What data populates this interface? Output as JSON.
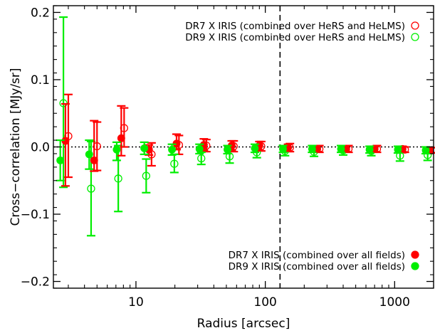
{
  "chart_data": {
    "type": "scatter",
    "xlabel": "Radius [arcsec]",
    "ylabel": "Cross−correlation [MJy/sr]",
    "xscale": "log",
    "xlim": [
      2.3,
      2000
    ],
    "ylim": [
      -0.21,
      0.21
    ],
    "x_ticks": [
      {
        "value": 10,
        "label": "10"
      },
      {
        "value": 100,
        "label": "100"
      },
      {
        "value": 1000,
        "label": "1000"
      }
    ],
    "y_ticks": [
      {
        "value": -0.2,
        "label": "−0.2"
      },
      {
        "value": -0.1,
        "label": "−0.1"
      },
      {
        "value": 0.0,
        "label": "0.0"
      },
      {
        "value": 0.1,
        "label": "0.1"
      },
      {
        "value": 0.2,
        "label": "0.2"
      }
    ],
    "reference_lines": {
      "horizontal_dotted_y": 0.0,
      "vertical_dashed_x": 130
    },
    "series": [
      {
        "name": "DR7 X IRIS (combined over HeRS and HeLMS)",
        "color": "#ff0000",
        "marker": "open-circle",
        "legend": "top-right",
        "points": [
          {
            "x": 3.0,
            "y": 0.016,
            "lo": -0.045,
            "hi": 0.078
          },
          {
            "x": 5.0,
            "y": 0.001,
            "lo": -0.035,
            "hi": 0.037
          },
          {
            "x": 8.1,
            "y": 0.028,
            "lo": 0.0,
            "hi": 0.058
          },
          {
            "x": 13.2,
            "y": -0.011,
            "lo": -0.028,
            "hi": 0.006
          },
          {
            "x": 21.5,
            "y": 0.003,
            "lo": -0.011,
            "hi": 0.017
          },
          {
            "x": 35.0,
            "y": 0.002,
            "lo": -0.007,
            "hi": 0.011
          },
          {
            "x": 57.0,
            "y": 0.001,
            "lo": -0.007,
            "hi": 0.009
          },
          {
            "x": 93.0,
            "y": 0.001,
            "lo": -0.006,
            "hi": 0.008
          },
          {
            "x": 155.0,
            "y": -0.001,
            "lo": -0.007,
            "hi": 0.005
          },
          {
            "x": 262.0,
            "y": -0.003,
            "lo": -0.008,
            "hi": 0.002
          },
          {
            "x": 440.0,
            "y": -0.003,
            "lo": -0.008,
            "hi": 0.002
          },
          {
            "x": 730.0,
            "y": -0.003,
            "lo": -0.008,
            "hi": 0.002
          },
          {
            "x": 1200.0,
            "y": -0.004,
            "lo": -0.008,
            "hi": 0.0
          },
          {
            "x": 1950.0,
            "y": -0.005,
            "lo": -0.009,
            "hi": -0.001
          }
        ]
      },
      {
        "name": "DR9 X IRIS (combined over HeRS and HeLMS)",
        "color": "#00ee00",
        "marker": "open-circle",
        "legend": "top-right",
        "points": [
          {
            "x": 2.75,
            "y": 0.065,
            "lo": -0.06,
            "hi": 0.193
          },
          {
            "x": 4.5,
            "y": -0.062,
            "lo": -0.132,
            "hi": 0.008
          },
          {
            "x": 7.3,
            "y": -0.047,
            "lo": -0.096,
            "hi": 0.002
          },
          {
            "x": 12.0,
            "y": -0.043,
            "lo": -0.068,
            "hi": -0.018
          },
          {
            "x": 19.8,
            "y": -0.025,
            "lo": -0.038,
            "hi": -0.011
          },
          {
            "x": 32.0,
            "y": -0.017,
            "lo": -0.026,
            "hi": -0.008
          },
          {
            "x": 53.0,
            "y": -0.014,
            "lo": -0.024,
            "hi": -0.005
          },
          {
            "x": 86.0,
            "y": -0.008,
            "lo": -0.016,
            "hi": 0.0
          },
          {
            "x": 142.0,
            "y": -0.006,
            "lo": -0.013,
            "hi": 0.001
          },
          {
            "x": 238.0,
            "y": -0.007,
            "lo": -0.014,
            "hi": 0.0
          },
          {
            "x": 400.0,
            "y": -0.005,
            "lo": -0.012,
            "hi": 0.002
          },
          {
            "x": 660.0,
            "y": -0.006,
            "lo": -0.013,
            "hi": 0.001
          },
          {
            "x": 1100.0,
            "y": -0.013,
            "lo": -0.021,
            "hi": -0.005
          },
          {
            "x": 1800.0,
            "y": -0.012,
            "lo": -0.02,
            "hi": -0.004
          }
        ]
      },
      {
        "name": "DR7 X IRIS (combined over all fields)",
        "color": "#ff0000",
        "marker": "filled-circle",
        "legend": "bottom-right",
        "points": [
          {
            "x": 2.85,
            "y": 0.009,
            "lo": -0.058,
            "hi": 0.064
          },
          {
            "x": 4.75,
            "y": -0.02,
            "lo": -0.036,
            "hi": 0.039
          },
          {
            "x": 7.7,
            "y": 0.013,
            "lo": -0.013,
            "hi": 0.061
          },
          {
            "x": 12.6,
            "y": -0.004,
            "lo": -0.012,
            "hi": 0.003
          },
          {
            "x": 20.6,
            "y": 0.005,
            "lo": -0.004,
            "hi": 0.019
          },
          {
            "x": 33.5,
            "y": 0.003,
            "lo": -0.005,
            "hi": 0.012
          },
          {
            "x": 55.0,
            "y": 0.002,
            "lo": -0.005,
            "hi": 0.009
          },
          {
            "x": 90.0,
            "y": 0.002,
            "lo": -0.005,
            "hi": 0.008
          },
          {
            "x": 150.0,
            "y": -0.001,
            "lo": -0.006,
            "hi": 0.004
          },
          {
            "x": 252.0,
            "y": -0.003,
            "lo": -0.007,
            "hi": 0.002
          },
          {
            "x": 422.0,
            "y": -0.003,
            "lo": -0.007,
            "hi": 0.002
          },
          {
            "x": 700.0,
            "y": -0.003,
            "lo": -0.007,
            "hi": 0.001
          },
          {
            "x": 1150.0,
            "y": -0.003,
            "lo": -0.007,
            "hi": 0.001
          },
          {
            "x": 1880.0,
            "y": -0.005,
            "lo": -0.008,
            "hi": -0.001
          }
        ]
      },
      {
        "name": "DR9 X IRIS (combined over all fields)",
        "color": "#00ee00",
        "marker": "filled-circle",
        "legend": "bottom-right",
        "points": [
          {
            "x": 2.6,
            "y": -0.02,
            "lo": -0.05,
            "hi": 0.01
          },
          {
            "x": 4.35,
            "y": -0.011,
            "lo": -0.033,
            "hi": 0.01
          },
          {
            "x": 7.1,
            "y": -0.004,
            "lo": -0.02,
            "hi": 0.007
          },
          {
            "x": 11.6,
            "y": -0.002,
            "lo": -0.011,
            "hi": 0.007
          },
          {
            "x": 19.0,
            "y": -0.004,
            "lo": -0.012,
            "hi": 0.004
          },
          {
            "x": 31.0,
            "y": -0.003,
            "lo": -0.01,
            "hi": 0.004
          },
          {
            "x": 51.0,
            "y": -0.004,
            "lo": -0.01,
            "hi": 0.002
          },
          {
            "x": 83.0,
            "y": -0.002,
            "lo": -0.008,
            "hi": 0.004
          },
          {
            "x": 137.0,
            "y": -0.003,
            "lo": -0.008,
            "hi": 0.002
          },
          {
            "x": 230.0,
            "y": -0.003,
            "lo": -0.008,
            "hi": 0.002
          },
          {
            "x": 385.0,
            "y": -0.003,
            "lo": -0.008,
            "hi": 0.002
          },
          {
            "x": 640.0,
            "y": -0.004,
            "lo": -0.009,
            "hi": 0.001
          },
          {
            "x": 1060.0,
            "y": -0.004,
            "lo": -0.009,
            "hi": 0.001
          },
          {
            "x": 1740.0,
            "y": -0.005,
            "lo": -0.01,
            "hi": 0.0
          }
        ]
      }
    ]
  }
}
